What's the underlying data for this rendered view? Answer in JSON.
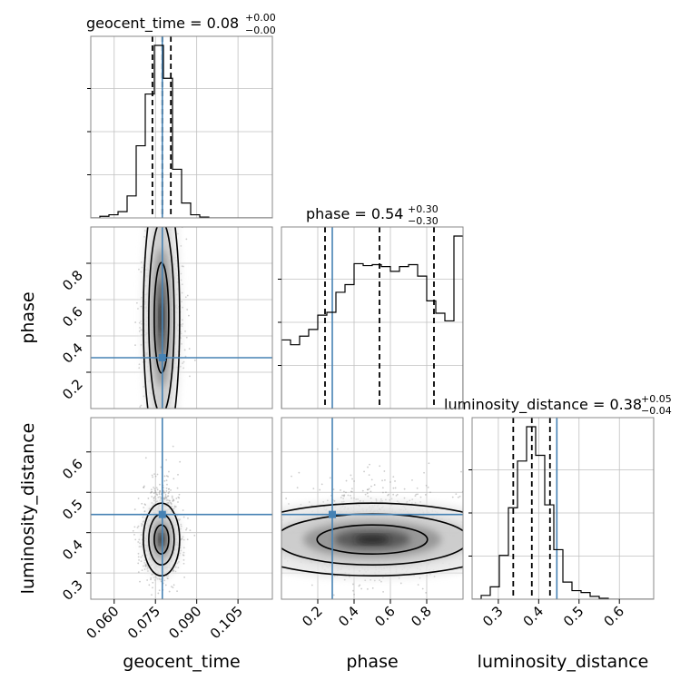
{
  "colors": {
    "truth": "#4682b4",
    "hist": "#000000",
    "grid": "#c0c0c0",
    "scatter": "#8c8c8c"
  },
  "chart_data": {
    "type": "corner",
    "parameters": [
      "geocent_time",
      "phase",
      "luminosity_distance"
    ],
    "titles": [
      {
        "param": "geocent_time",
        "text": "geocent_time = 0.08",
        "plus": "+0.00",
        "minus": "−0.00"
      },
      {
        "param": "phase",
        "text": "phase = 0.54",
        "plus": "+0.30",
        "minus": "−0.30"
      },
      {
        "param": "luminosity_distance",
        "text": "luminosity_distance = 0.38",
        "plus": "+0.05",
        "minus": "−0.04"
      }
    ],
    "ranges": {
      "geocent_time": [
        0.0515,
        0.1175
      ],
      "phase": [
        0.0,
        1.0
      ],
      "luminosity_distance": [
        0.235,
        0.685
      ]
    },
    "ticks": {
      "geocent_time": {
        "values": [
          0.06,
          0.075,
          0.09,
          0.105
        ],
        "labels": [
          "0.060",
          "0.075",
          "0.090",
          "0.105"
        ]
      },
      "phase": {
        "values": [
          0.2,
          0.4,
          0.6,
          0.8
        ],
        "labels": [
          "0.2",
          "0.4",
          "0.6",
          "0.8"
        ]
      },
      "luminosity_distance": {
        "values": [
          0.3,
          0.4,
          0.5,
          0.6
        ],
        "labels": [
          "0.3",
          "0.4",
          "0.5",
          "0.6"
        ]
      }
    },
    "truths": {
      "geocent_time": 0.0775,
      "phase": 0.28,
      "luminosity_distance": 0.445
    },
    "quantiles": {
      "geocent_time": [
        0.0739,
        0.0775,
        0.0806
      ],
      "phase": [
        0.24,
        0.54,
        0.84
      ],
      "luminosity_distance": [
        0.337,
        0.383,
        0.428
      ]
    },
    "histograms": {
      "geocent_time": {
        "edges": [
          0.0515,
          0.0548,
          0.0581,
          0.0614,
          0.0647,
          0.068,
          0.0713,
          0.0746,
          0.0779,
          0.0812,
          0.0845,
          0.0878,
          0.0911,
          0.0944,
          0.0977,
          0.101,
          0.1043,
          0.1076,
          0.1109,
          0.1142,
          0.1175
        ],
        "counts": [
          0,
          2,
          4,
          8,
          28,
          92,
          158,
          220,
          178,
          62,
          19,
          4,
          1,
          0,
          0,
          0,
          0,
          0,
          0,
          0
        ]
      },
      "phase": {
        "edges": [
          0.0,
          0.05,
          0.1,
          0.15,
          0.2,
          0.25,
          0.3,
          0.35,
          0.4,
          0.45,
          0.5,
          0.55,
          0.6,
          0.65,
          0.7,
          0.75,
          0.8,
          0.85,
          0.9,
          0.95,
          1.0
        ],
        "counts": [
          72,
          67,
          76,
          83,
          98,
          101,
          122,
          130,
          152,
          150,
          151,
          149,
          144,
          149,
          151,
          139,
          113,
          100,
          92,
          181
        ]
      },
      "luminosity_distance": {
        "edges": [
          0.235,
          0.2575,
          0.28,
          0.3025,
          0.325,
          0.3475,
          0.37,
          0.3925,
          0.415,
          0.4375,
          0.46,
          0.4825,
          0.505,
          0.5275,
          0.55,
          0.5725,
          0.595,
          0.6175,
          0.64,
          0.6625,
          0.685
        ],
        "counts": [
          0,
          4,
          13,
          46,
          96,
          145,
          181,
          151,
          99,
          52,
          18,
          9,
          7,
          3,
          1,
          0,
          0,
          0,
          0,
          0
        ]
      }
    },
    "axis_labels": {
      "geocent_time": "geocent_time",
      "phase": "phase",
      "luminosity_distance": "luminosity_distance"
    },
    "grid": true
  }
}
